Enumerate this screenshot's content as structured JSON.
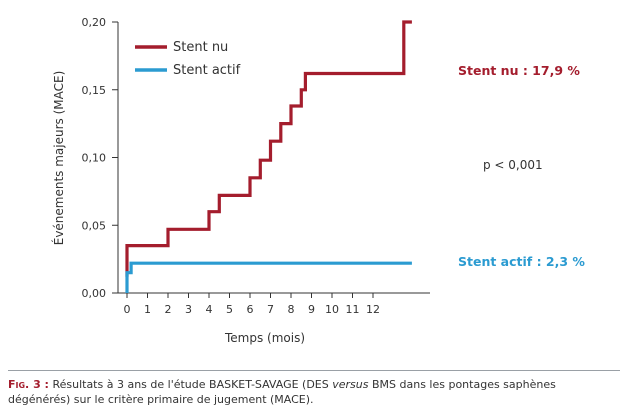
{
  "chart_data": {
    "type": "line",
    "step": true,
    "xlabel": "Temps (mois)",
    "ylabel": "Événements majeurs (MACE)",
    "xlim": [
      0,
      13
    ],
    "ylim": [
      0,
      0.2
    ],
    "x_ticks": [
      0,
      1,
      2,
      3,
      4,
      5,
      6,
      7,
      8,
      9,
      10,
      11,
      12
    ],
    "x_tick_labels": [
      "0",
      "1",
      "2",
      "3",
      "4",
      "5",
      "6",
      "7",
      "8",
      "9",
      "10",
      "11",
      "12"
    ],
    "y_ticks": [
      0,
      0.05,
      0.1,
      0.15,
      0.2
    ],
    "y_tick_labels": [
      "0,00",
      "0,05",
      "0,10",
      "0,15",
      "0,20"
    ],
    "legend_position": "top-left",
    "series": [
      {
        "name": "Stent nu",
        "color": "#a41d2d",
        "points": [
          [
            0,
            0.012
          ],
          [
            0,
            0.035
          ],
          [
            2,
            0.035
          ],
          [
            2,
            0.047
          ],
          [
            4,
            0.047
          ],
          [
            4,
            0.06
          ],
          [
            4.5,
            0.06
          ],
          [
            4.5,
            0.072
          ],
          [
            6,
            0.072
          ],
          [
            6,
            0.085
          ],
          [
            6.5,
            0.085
          ],
          [
            6.5,
            0.098
          ],
          [
            7,
            0.098
          ],
          [
            7,
            0.112
          ],
          [
            7.5,
            0.112
          ],
          [
            7.5,
            0.125
          ],
          [
            8,
            0.125
          ],
          [
            8,
            0.138
          ],
          [
            8.5,
            0.138
          ],
          [
            8.5,
            0.15
          ],
          [
            8.7,
            0.15
          ],
          [
            8.7,
            0.162
          ],
          [
            13.5,
            0.162
          ],
          [
            13.5,
            0.2
          ],
          [
            13.9,
            0.2
          ]
        ]
      },
      {
        "name": "Stent actif",
        "color": "#2b9bd1",
        "points": [
          [
            0,
            0.0
          ],
          [
            0,
            0.015
          ],
          [
            0.2,
            0.015
          ],
          [
            0.2,
            0.022
          ],
          [
            13.9,
            0.022
          ]
        ]
      }
    ],
    "annotations": [
      {
        "text": "Stent nu : 17,9 %",
        "color": "#a41d2d"
      },
      {
        "text": "Stent actif : 2,3 %",
        "color": "#2b9bd1"
      },
      {
        "text": "p < 0,001",
        "color": "#333333"
      }
    ]
  },
  "caption": {
    "label": "Fig. 3 :",
    "text_before": "Résultats à 3 ans de l'étude BASKET-SAVAGE (DES ",
    "text_italic": "versus",
    "text_after": " BMS dans les pontages saphènes dégénérés) sur le critère primaire de jugement (MACE)."
  }
}
